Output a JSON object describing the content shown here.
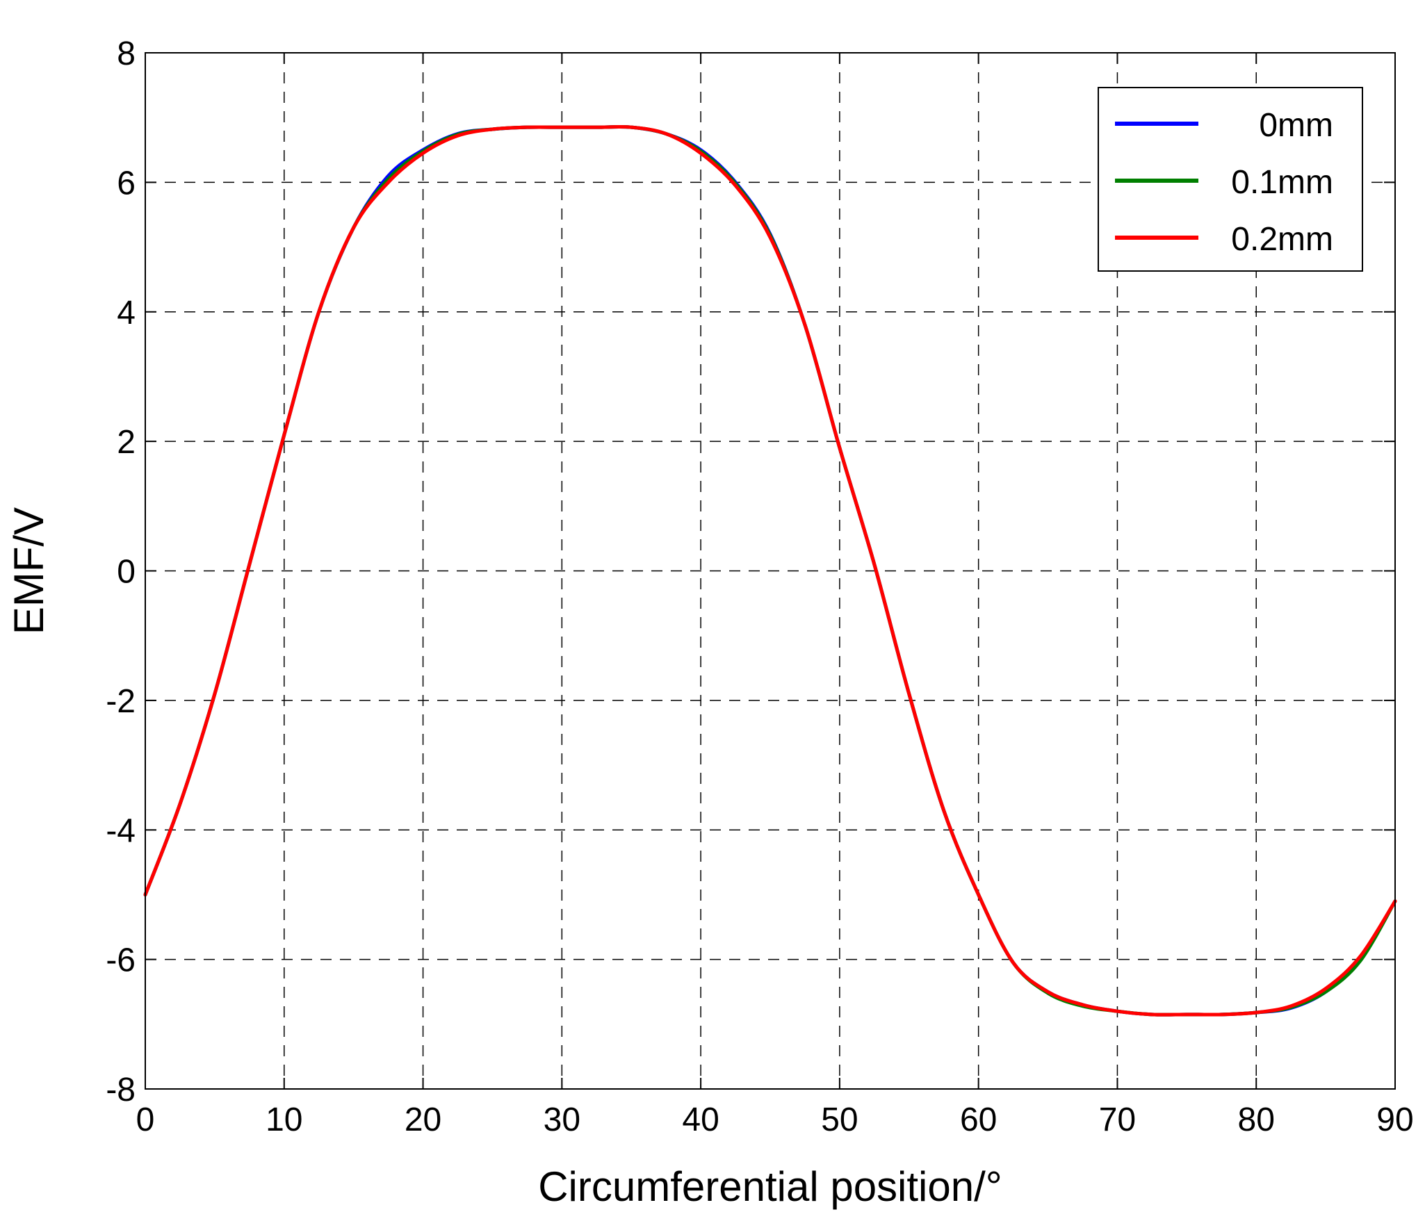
{
  "chart_data": {
    "type": "line",
    "xlabel": "Circumferential position/°",
    "ylabel": "EMF/V",
    "xlim": [
      0,
      90
    ],
    "ylim": [
      -8,
      8
    ],
    "xticks": [
      "0",
      "10",
      "20",
      "30",
      "40",
      "50",
      "60",
      "70",
      "80",
      "90"
    ],
    "yticks": [
      "8",
      "6",
      "4",
      "2",
      "0",
      "-2",
      "-4",
      "-6",
      "-8"
    ],
    "grid": true,
    "legend_position": "top-right",
    "x": [
      0,
      2.5,
      5,
      7.5,
      10,
      12.5,
      15,
      17.5,
      20,
      22.5,
      25,
      27.5,
      30,
      32.5,
      35,
      37.5,
      40,
      42.5,
      45,
      47.5,
      50,
      52.5,
      55,
      57.5,
      60,
      62.5,
      65,
      67.5,
      70,
      72.5,
      75,
      77.5,
      80,
      82.5,
      85,
      87.5,
      90
    ],
    "series": [
      {
        "name": "0mm",
        "color": "#0000ff",
        "values": [
          -5.0,
          -3.6,
          -1.9,
          0.1,
          2.1,
          4.0,
          5.3,
          6.1,
          6.5,
          6.75,
          6.82,
          6.85,
          6.85,
          6.85,
          6.85,
          6.75,
          6.5,
          6.0,
          5.2,
          3.8,
          1.9,
          0.1,
          -1.9,
          -3.7,
          -5.0,
          -6.05,
          -6.5,
          -6.7,
          -6.8,
          -6.85,
          -6.85,
          -6.85,
          -6.82,
          -6.75,
          -6.5,
          -6.0,
          -5.1
        ]
      },
      {
        "name": "0.1mm",
        "color": "#007f00",
        "values": [
          -5.0,
          -3.6,
          -1.9,
          0.1,
          2.1,
          4.0,
          5.3,
          6.05,
          6.48,
          6.74,
          6.82,
          6.85,
          6.85,
          6.85,
          6.85,
          6.75,
          6.48,
          5.98,
          5.18,
          3.8,
          1.9,
          0.1,
          -1.9,
          -3.7,
          -5.0,
          -6.05,
          -6.52,
          -6.72,
          -6.8,
          -6.85,
          -6.85,
          -6.85,
          -6.82,
          -6.74,
          -6.5,
          -6.02,
          -5.1
        ]
      },
      {
        "name": "0.2mm",
        "color": "#ff0000",
        "values": [
          -5.0,
          -3.6,
          -1.9,
          0.1,
          2.1,
          4.0,
          5.3,
          6.0,
          6.45,
          6.72,
          6.82,
          6.85,
          6.85,
          6.85,
          6.85,
          6.75,
          6.45,
          5.95,
          5.15,
          3.8,
          1.9,
          0.1,
          -1.9,
          -3.7,
          -5.0,
          -6.05,
          -6.5,
          -6.7,
          -6.8,
          -6.85,
          -6.85,
          -6.85,
          -6.82,
          -6.72,
          -6.45,
          -5.95,
          -5.1
        ]
      }
    ]
  }
}
